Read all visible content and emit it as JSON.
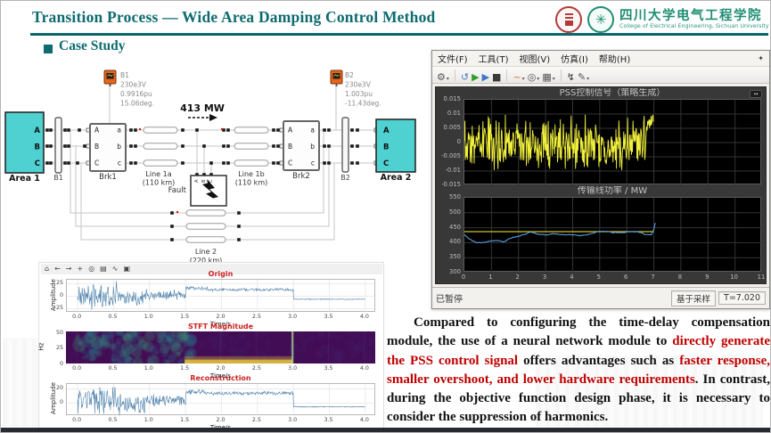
{
  "slide": {
    "title": "Transition Process — Wide Area Damping Control Method",
    "section_heading": "Case Study",
    "accent_color": "#0e6b70",
    "footer_bar_color": "#262a31"
  },
  "logos": {
    "cn_name": "四川大学电气工程学院",
    "en_name": "College of Electrical Engineering, Sichuan University",
    "college_seal_glyph": "✳"
  },
  "diagram": {
    "b1_meas": {
      "name": "B1",
      "voltage": "230e3V",
      "pu": "0.9916pu",
      "angle": "15.06deg."
    },
    "b2_meas": {
      "name": "B2",
      "voltage": "230e3V",
      "pu": "1.003pu",
      "angle": "-11.43deg."
    },
    "power_flow": "413 MW",
    "area1": "Area 1",
    "area2": "Area 2",
    "bus1": "B1",
    "bus2": "B2",
    "brk1": "Brk1",
    "brk2": "Brk2",
    "line1a": "Line 1a",
    "line1a_len": "(110 km)",
    "line1b": "Line 1b",
    "line1b_len": "(110 km)",
    "line2": "Line 2",
    "line2_len": "(220 km)",
    "fault": "Fault",
    "ports": {
      "A": "A",
      "B": "B",
      "C": "C",
      "a": "a",
      "b": "b",
      "c": "c"
    }
  },
  "scope": {
    "menu": [
      "文件(F)",
      "工具(T)",
      "视图(V)",
      "仿真(I)",
      "帮助(H)"
    ],
    "status_left": "已暂停",
    "status_mode": "基于采样",
    "status_time": "T=7.020"
  },
  "scope_toolbar": [
    {
      "name": "settings-icon",
      "glyph": "⚙",
      "color": "#555555",
      "caret": true,
      "sep_after": true
    },
    {
      "name": "connect-icon",
      "glyph": "↺",
      "color": "#4a7dbf",
      "caret": false,
      "sep_after": false
    },
    {
      "name": "run-icon",
      "glyph": "▶",
      "color": "#2f9e2f",
      "caret": false,
      "sep_after": false
    },
    {
      "name": "step-forward-icon",
      "glyph": "▶",
      "color": "#3b77c7",
      "caret": false,
      "sep_after": false
    },
    {
      "name": "stop-icon",
      "glyph": "■",
      "color": "#3a3a3a",
      "caret": false,
      "sep_after": true
    },
    {
      "name": "style-brush-icon",
      "glyph": "~",
      "color": "#d87a1e",
      "caret": true,
      "sep_after": false
    },
    {
      "name": "zoom-icon",
      "glyph": "◎",
      "color": "#555555",
      "caret": true,
      "sep_after": false
    },
    {
      "name": "fit-view-icon",
      "glyph": "▦",
      "color": "#555555",
      "caret": true,
      "sep_after": true
    },
    {
      "name": "trigger-icon",
      "glyph": "↯",
      "color": "#333333",
      "caret": false,
      "sep_after": false
    },
    {
      "name": "annotate-icon",
      "glyph": "✎",
      "color": "#555555",
      "caret": true,
      "sep_after": false
    }
  ],
  "mpl_toolbar": [
    {
      "name": "home-icon",
      "glyph": "⌂"
    },
    {
      "name": "back-icon",
      "glyph": "←"
    },
    {
      "name": "forward-icon",
      "glyph": "→"
    },
    {
      "name": "pan-icon",
      "glyph": "+"
    },
    {
      "name": "zoom-rect-icon",
      "glyph": "◎"
    },
    {
      "name": "subplots-icon",
      "glyph": "▤"
    },
    {
      "name": "customize-icon",
      "glyph": "∿"
    },
    {
      "name": "save-icon",
      "glyph": "▣"
    }
  ],
  "chart_data": [
    {
      "id": "pss_signal",
      "type": "line",
      "title": "PSS控制信号（策略生成）",
      "xlim": [
        0,
        11
      ],
      "ylim": [
        -0.015,
        0.015
      ],
      "yticks": [
        "0.015",
        "0.01",
        "0.005",
        "0",
        "-0.005",
        "-0.01",
        "-0.015"
      ],
      "grid": true,
      "bg": "#000000",
      "legend": "none",
      "series": [
        {
          "name": "pss_control_signal",
          "color": "#f0ef3c",
          "t_end": 7.0,
          "bias": -0.001,
          "noise_amp": 0.006,
          "spike_amp": 0.0098,
          "end_peak": 0.009,
          "description": "dense noisy control signal from t=0 to t≈7 s, band ≈ -0.011..0.009"
        }
      ]
    },
    {
      "id": "line_power",
      "type": "line",
      "title": "传输线功率 / MW",
      "xlim": [
        0,
        11
      ],
      "ylim": [
        300,
        550
      ],
      "yticks": [
        "550",
        "500",
        "450",
        "400",
        "350",
        "300"
      ],
      "xticks": [
        "0",
        "1",
        "2",
        "3",
        "4",
        "5",
        "6",
        "7",
        "8",
        "9",
        "10",
        "11"
      ],
      "grid": true,
      "bg": "#000000",
      "legend": "none",
      "series": [
        {
          "name": "reference_437MW",
          "shape": "hline",
          "color": "#cfc22e",
          "y": 437,
          "t_end": 7.0
        },
        {
          "name": "transmitted_power",
          "color": "#58a0dc",
          "x": [
            0,
            0.15,
            0.45,
            0.65,
            0.95,
            1.2,
            1.45,
            1.75,
            2.0,
            2.25,
            2.45,
            2.7,
            3.0,
            3.3,
            3.6,
            3.95,
            4.3,
            4.6,
            4.95,
            5.2,
            5.5,
            5.8,
            6.1,
            6.4,
            6.7,
            6.9,
            7.0,
            7.05
          ],
          "y": [
            427,
            414,
            400,
            400,
            406,
            407,
            403,
            417,
            421,
            429,
            436,
            429,
            426,
            430,
            427,
            426,
            424,
            428,
            437,
            438,
            434,
            433,
            437,
            437,
            427,
            426,
            445,
            466
          ]
        }
      ]
    },
    {
      "id": "origin",
      "type": "line",
      "title": "Origin",
      "title_color": "#cc2222",
      "xlabel": "Time/s",
      "ylabel": "Amplitude",
      "xlim": [
        -0.15,
        4.15
      ],
      "ylim": [
        -33,
        33
      ],
      "yticks": [
        "25",
        "0",
        "-25"
      ],
      "xticks": [
        "0.0",
        "0.5",
        "1.0",
        "1.5",
        "2.0",
        "2.5",
        "3.0",
        "3.5",
        "4.0"
      ],
      "grid": true,
      "series": [
        {
          "name": "original_signal",
          "color": "#4f83ad",
          "segments": [
            {
              "t0": 0.0,
              "t1": 0.55,
              "base": 2,
              "amp": 23
            },
            {
              "t0": 0.55,
              "t1": 0.95,
              "base": -3,
              "amp": 15
            },
            {
              "t0": 0.95,
              "t1": 1.5,
              "base": 3,
              "amp": 8
            },
            {
              "t0": 1.5,
              "t1": 1.8,
              "base": 16,
              "amp": 4
            },
            {
              "t0": 1.8,
              "t1": 3.0,
              "base": 13,
              "amp": 2.5
            },
            {
              "t0": 3.0,
              "t1": 4.0,
              "base": -6,
              "amp": 0.8
            }
          ]
        }
      ]
    },
    {
      "id": "stft",
      "type": "heatmap",
      "title": "STFT Magnitude",
      "title_color": "#cc2222",
      "xlabel": "Time/s",
      "ylabel": "Hz",
      "xlim": [
        -0.15,
        4.15
      ],
      "ylim": [
        0,
        52
      ],
      "yticks": [
        "50",
        "25",
        "0"
      ],
      "xticks": [
        "0.0",
        "0.5",
        "1.0",
        "1.5",
        "2.0",
        "2.5",
        "3.0",
        "3.5",
        "4.0"
      ],
      "colormap": "viridis",
      "features": {
        "background": "#420d54",
        "noise_blobs": {
          "t_range": [
            0,
            1.6
          ],
          "colors": [
            "#2e6f8e",
            "#21918c",
            "#35b779",
            "#46327e"
          ]
        },
        "low_freq_band": {
          "t_range": [
            1.5,
            3.0
          ],
          "hz_range": [
            0,
            6
          ],
          "color": "#e8c33c"
        },
        "transient": {
          "t": 3.0,
          "color": "#aee39a"
        }
      }
    },
    {
      "id": "reconstruction",
      "type": "line",
      "title": "Reconstruction",
      "title_color": "#cc2222",
      "xlabel": "Time/s",
      "ylabel": "Amplitude",
      "xlim": [
        -0.15,
        4.15
      ],
      "ylim": [
        -18,
        27
      ],
      "yticks": [
        "20",
        "0"
      ],
      "xticks": [
        "0.0",
        "0.5",
        "1.0",
        "1.5",
        "2.0",
        "2.5",
        "3.0",
        "3.5",
        "4.0"
      ],
      "grid": true,
      "series": [
        {
          "name": "reconstructed_signal",
          "color": "#4f83ad",
          "segments": [
            {
              "t0": 0.0,
              "t1": 0.55,
              "base": 4,
              "amp": 15
            },
            {
              "t0": 0.55,
              "t1": 0.95,
              "base": -2,
              "amp": 12
            },
            {
              "t0": 0.95,
              "t1": 1.5,
              "base": 4,
              "amp": 7
            },
            {
              "t0": 1.5,
              "t1": 1.8,
              "base": 16,
              "amp": 3
            },
            {
              "t0": 1.8,
              "t1": 3.0,
              "base": 14,
              "amp": 2
            },
            {
              "t0": 3.0,
              "t1": 4.0,
              "base": -5,
              "amp": 0.6
            }
          ]
        }
      ]
    }
  ],
  "analysis": {
    "segments": [
      {
        "text": "Compared to configuring the time-delay compensation module, the use of a neural network module to ",
        "color": "#111111"
      },
      {
        "text": "directly generate the PSS control signal",
        "color": "#c00000"
      },
      {
        "text": " offers advantages such as ",
        "color": "#111111"
      },
      {
        "text": "faster response, smaller overshoot, and lower hardware requirements",
        "color": "#c00000"
      },
      {
        "text": ". In contrast, during the objective function design phase, it is necessary to consider the suppression of harmonics.",
        "color": "#111111"
      }
    ]
  }
}
